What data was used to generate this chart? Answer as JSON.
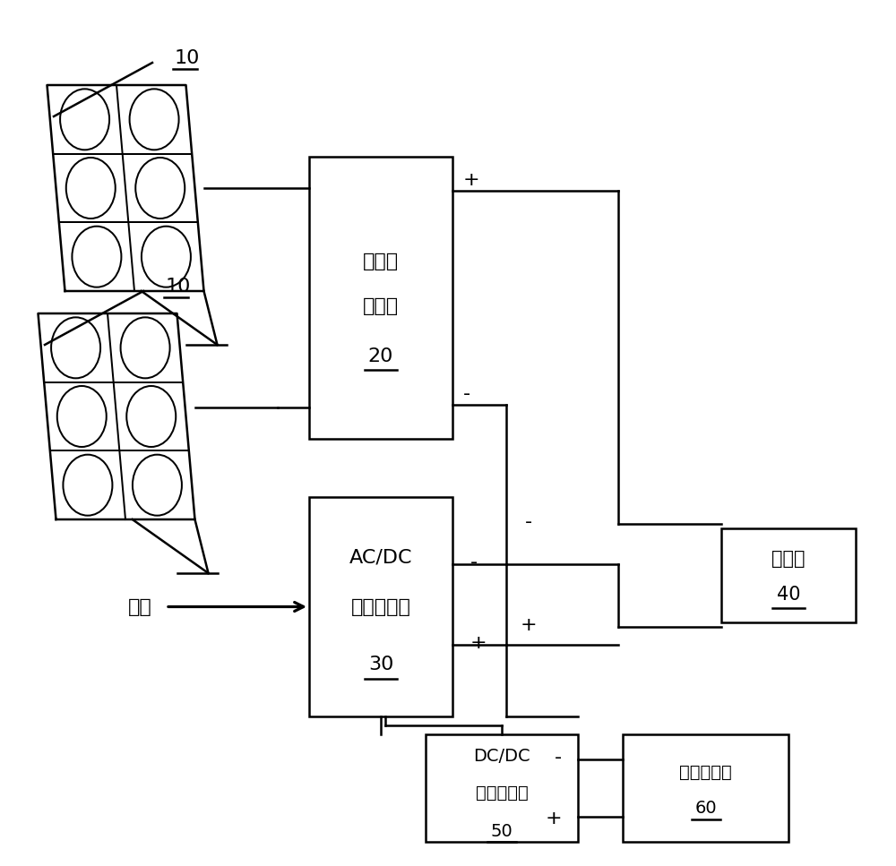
{
  "bg_color": "#ffffff",
  "lc": "#000000",
  "lw": 1.8,
  "panel_label": "10",
  "sc_text1": "太阳能",
  "sc_text2": "控制器",
  "sc_num": "20",
  "acdc_text1": "AC/DC",
  "acdc_text2": "整流控制器",
  "acdc_num": "30",
  "bat_text1": "电池组",
  "bat_num": "40",
  "dcdc_text1": "DC/DC",
  "dcdc_text2": "逆变控制器",
  "dcdc_num": "50",
  "chg_text1": "直流充电桩",
  "chg_num": "60",
  "grid_text": "市电",
  "plus": "+",
  "minus": "-"
}
